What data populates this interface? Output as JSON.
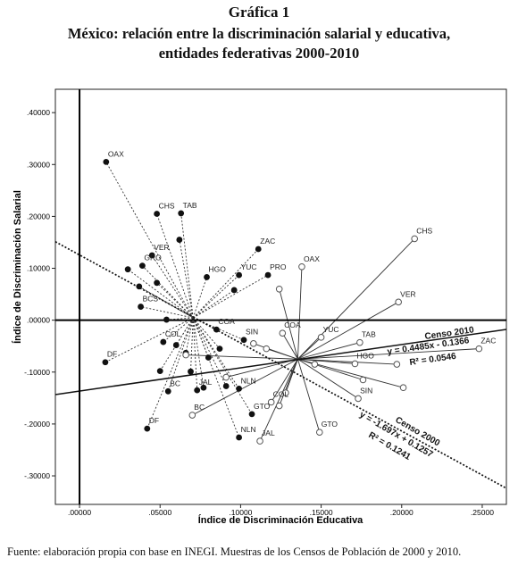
{
  "header": {
    "label": "Gráfica 1",
    "title": "México: relación entre la discriminación salarial y educativa,",
    "subtitle": "entidades federativas 2000-2010"
  },
  "source": "Fuente: elaboración propia con base en INEGI. Muestras de los Censos de Población de 2000 y 2010.",
  "chart_data": {
    "type": "scatter",
    "xlabel": "Índice de Discriminación Educativa",
    "ylabel": "Índice de Discriminación Salarial",
    "xlim": [
      -0.015,
      0.265
    ],
    "ylim": [
      -0.355,
      0.445
    ],
    "xticks": [
      0.0,
      0.05,
      0.1,
      0.15,
      0.2,
      0.25
    ],
    "xtick_labels": [
      ".00000",
      ".05000",
      ".10000",
      ".15000",
      ".20000",
      ".25000"
    ],
    "yticks": [
      0.4,
      0.3,
      0.2,
      0.1,
      0.0,
      -0.1,
      -0.2,
      -0.3
    ],
    "ytick_labels": [
      ".40000",
      ".30000",
      ".20000",
      ".10000",
      ".00000",
      "-.10000",
      "-.20000",
      "-.30000"
    ],
    "grid": false,
    "reference_lines": {
      "x": 0.0,
      "y": 0.0
    },
    "hub_2000": [
      0.0705,
      0.0045
    ],
    "hub_2010": [
      0.1355,
      -0.075
    ],
    "points_2000": [
      {
        "label": "OAX",
        "x": 0.0165,
        "y": 0.305
      },
      {
        "label": "CHS",
        "x": 0.048,
        "y": 0.205
      },
      {
        "label": "TAB",
        "x": 0.063,
        "y": 0.206
      },
      {
        "label": "VER",
        "x": 0.045,
        "y": 0.125
      },
      {
        "label": "GRO",
        "x": 0.039,
        "y": 0.105
      },
      {
        "label": "ZAC",
        "x": 0.111,
        "y": 0.137
      },
      {
        "label": "HGO",
        "x": 0.079,
        "y": 0.083
      },
      {
        "label": "YUC",
        "x": 0.099,
        "y": 0.087
      },
      {
        "label": "PRO",
        "x": 0.117,
        "y": 0.087
      },
      {
        "label": "BCS",
        "x": 0.038,
        "y": 0.026
      },
      {
        "label": "COA",
        "x": 0.085,
        "y": -0.018
      },
      {
        "label": "SIN",
        "x": 0.102,
        "y": -0.038
      },
      {
        "label": "COL",
        "x": 0.052,
        "y": -0.042
      },
      {
        "label": "DF",
        "x": 0.016,
        "y": -0.081
      },
      {
        "label": "BC",
        "x": 0.055,
        "y": -0.137
      },
      {
        "label": "JAL",
        "x": 0.073,
        "y": -0.135
      },
      {
        "label": "NLN",
        "x": 0.099,
        "y": -0.132
      },
      {
        "label": "GTO",
        "x": 0.107,
        "y": -0.181
      },
      {
        "label": "DF",
        "x": 0.042,
        "y": -0.209
      },
      {
        "label": "NLN",
        "x": 0.099,
        "y": -0.226
      },
      {
        "label": "",
        "x": 0.03,
        "y": 0.098
      },
      {
        "label": "",
        "x": 0.037,
        "y": 0.065
      },
      {
        "label": "",
        "x": 0.048,
        "y": 0.072
      },
      {
        "label": "",
        "x": 0.062,
        "y": 0.155
      },
      {
        "label": "",
        "x": 0.054,
        "y": 0.001
      },
      {
        "label": "",
        "x": 0.096,
        "y": 0.058
      },
      {
        "label": "",
        "x": 0.06,
        "y": -0.048
      },
      {
        "label": "",
        "x": 0.066,
        "y": -0.063
      },
      {
        "label": "",
        "x": 0.05,
        "y": -0.098
      },
      {
        "label": "",
        "x": 0.069,
        "y": -0.099
      },
      {
        "label": "",
        "x": 0.08,
        "y": -0.072
      },
      {
        "label": "",
        "x": 0.087,
        "y": -0.055
      },
      {
        "label": "",
        "x": 0.091,
        "y": -0.127
      },
      {
        "label": "",
        "x": 0.077,
        "y": -0.13
      }
    ],
    "points_2010": [
      {
        "label": "OAX",
        "x": 0.138,
        "y": 0.103
      },
      {
        "label": "CHS",
        "x": 0.208,
        "y": 0.157
      },
      {
        "label": "VER",
        "x": 0.198,
        "y": 0.035
      },
      {
        "label": "YUC",
        "x": 0.15,
        "y": -0.033
      },
      {
        "label": "TAB",
        "x": 0.174,
        "y": -0.043
      },
      {
        "label": "ZAC",
        "x": 0.248,
        "y": -0.055
      },
      {
        "label": "COA",
        "x": 0.126,
        "y": -0.025
      },
      {
        "label": "HGO",
        "x": 0.171,
        "y": -0.084
      },
      {
        "label": "SIN",
        "x": 0.173,
        "y": -0.151
      },
      {
        "label": "COL",
        "x": 0.119,
        "y": -0.158
      },
      {
        "label": "GTO",
        "x": 0.149,
        "y": -0.216
      },
      {
        "label": "JAL",
        "x": 0.112,
        "y": -0.233
      },
      {
        "label": "BC",
        "x": 0.07,
        "y": -0.183
      },
      {
        "label": "",
        "x": 0.124,
        "y": 0.06
      },
      {
        "label": "",
        "x": 0.108,
        "y": -0.045
      },
      {
        "label": "",
        "x": 0.116,
        "y": -0.055
      },
      {
        "label": "",
        "x": 0.066,
        "y": -0.067
      },
      {
        "label": "",
        "x": 0.197,
        "y": -0.085
      },
      {
        "label": "",
        "x": 0.201,
        "y": -0.13
      },
      {
        "label": "",
        "x": 0.124,
        "y": -0.165
      },
      {
        "label": "",
        "x": 0.176,
        "y": -0.115
      },
      {
        "label": "",
        "x": 0.128,
        "y": -0.14
      },
      {
        "label": "",
        "x": 0.146,
        "y": -0.085
      },
      {
        "label": "",
        "x": 0.091,
        "y": -0.11
      }
    ],
    "fit_2010": {
      "slope": 0.4485,
      "intercept": -0.1366,
      "x_range": [
        -0.015,
        0.265
      ],
      "label": "Censo 2010",
      "equation": "y = 0.4485x - 0.1366",
      "r2": "R² = 0.0546"
    },
    "fit_2000": {
      "slope": -1.697,
      "intercept": 0.1257,
      "x_range": [
        -0.015,
        0.265
      ],
      "label": "Censo 2000",
      "equation": "y = -1.697x + 0.1257",
      "r2": "R² = 0.1241"
    }
  }
}
